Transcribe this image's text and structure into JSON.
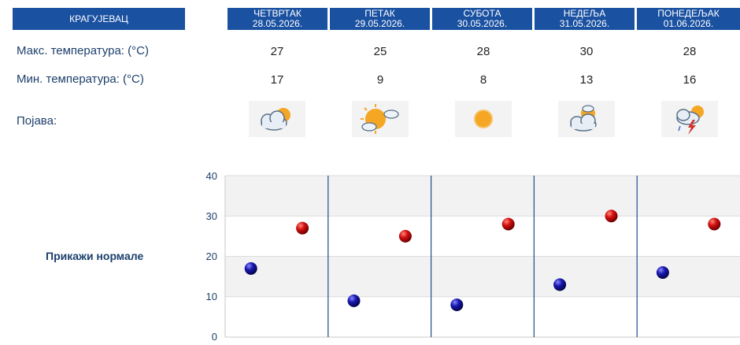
{
  "header": {
    "city": "КРАГУЈЕВАЦ",
    "days": [
      {
        "name": "ЧЕТВРТАК",
        "date": "28.05.2026."
      },
      {
        "name": "ПЕТАК",
        "date": "29.05.2026."
      },
      {
        "name": "СУБОТА",
        "date": "30.05.2026."
      },
      {
        "name": "НЕДЕЉА",
        "date": "31.05.2026."
      },
      {
        "name": "ПОНЕДЕЉАК",
        "date": "01.06.2026."
      }
    ]
  },
  "rows": {
    "max_label": "Макс. температура: (°C)",
    "min_label": "Мин. температура: (°C)",
    "phenomenon_label": "Појава:",
    "max": [
      "27",
      "25",
      "28",
      "30",
      "28"
    ],
    "min": [
      "17",
      "9",
      "8",
      "13",
      "16"
    ],
    "icons": [
      "partly-cloudy-icon",
      "mostly-sunny-icon",
      "sunny-icon",
      "partly-cloudy-icon",
      "thunderstorm-icon"
    ]
  },
  "show_normals_label": "Прикажи нормале",
  "colors": {
    "header_bg": "#1a51a1",
    "text": "#1c3f6b",
    "max_point": "#c00000",
    "min_point": "#1a1aa8"
  },
  "chart_data": {
    "type": "scatter",
    "categories": [
      "28.05.2026.",
      "29.05.2026.",
      "30.05.2026.",
      "31.05.2026.",
      "01.06.2026."
    ],
    "yticks": [
      "0",
      "10",
      "20",
      "30",
      "40"
    ],
    "ylim": [
      0,
      40
    ],
    "grid": true,
    "series": [
      {
        "values": [
          27,
          25,
          28,
          30,
          28
        ]
      },
      {
        "values": [
          17,
          9,
          8,
          13,
          16
        ]
      }
    ]
  }
}
